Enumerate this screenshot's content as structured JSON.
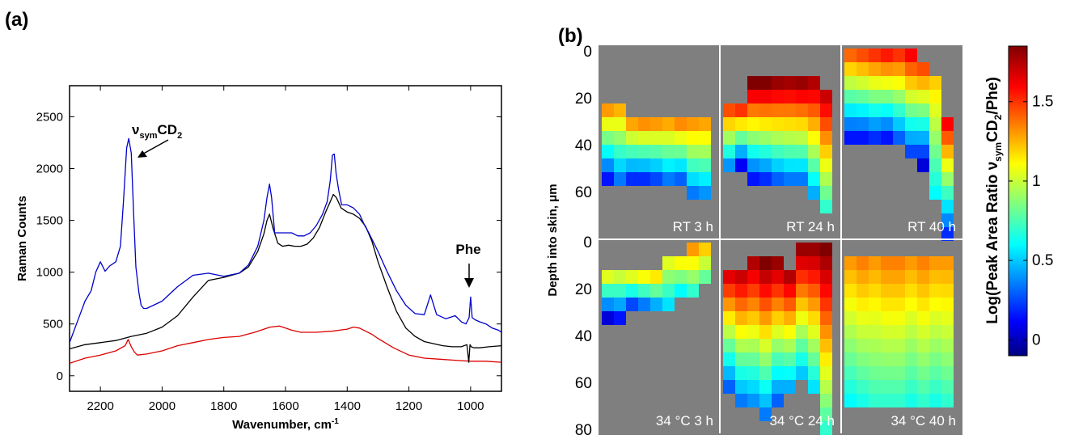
{
  "panel_a_label": "(a)",
  "panel_b_label": "(b)",
  "chart_data": [
    {
      "type": "line",
      "panel": "(a)",
      "xlabel": "Wavenumber, cm",
      "xlabel_sup": "-1",
      "ylabel": "Raman Counts",
      "xlim": [
        2300,
        900
      ],
      "ylim": [
        -150,
        2800
      ],
      "x_ticks": [
        2200,
        2000,
        1800,
        1600,
        1400,
        1200,
        1000
      ],
      "y_ticks": [
        0,
        500,
        1000,
        1500,
        2000,
        2500
      ],
      "annotations": {
        "cd2_base": "ν",
        "cd2_sub": "sym",
        "cd2_main": "CD",
        "cd2_sub2": "2",
        "phe": "Phe"
      },
      "series": [
        {
          "color": "#0000cc",
          "x": [
            2300,
            2280,
            2250,
            2230,
            2215,
            2200,
            2185,
            2170,
            2150,
            2135,
            2125,
            2115,
            2108,
            2100,
            2092,
            2085,
            2075,
            2068,
            2060,
            2050,
            2000,
            1950,
            1900,
            1850,
            1800,
            1750,
            1720,
            1690,
            1670,
            1660,
            1652,
            1645,
            1635,
            1620,
            1600,
            1580,
            1560,
            1540,
            1520,
            1500,
            1480,
            1465,
            1455,
            1448,
            1442,
            1436,
            1428,
            1418,
            1400,
            1380,
            1360,
            1345,
            1330,
            1300,
            1270,
            1240,
            1210,
            1180,
            1150,
            1130,
            1110,
            1080,
            1050,
            1030,
            1015,
            1005,
            1000,
            995,
            985,
            970,
            950,
            930,
            910,
            900
          ],
          "y": [
            320,
            480,
            720,
            820,
            1000,
            1100,
            1010,
            1060,
            1100,
            1250,
            1700,
            2200,
            2290,
            2150,
            1550,
            1050,
            800,
            680,
            650,
            650,
            720,
            860,
            970,
            990,
            960,
            990,
            1070,
            1250,
            1500,
            1720,
            1850,
            1720,
            1380,
            1380,
            1380,
            1380,
            1350,
            1350,
            1380,
            1450,
            1560,
            1680,
            1880,
            2130,
            2140,
            1950,
            1800,
            1650,
            1650,
            1620,
            1560,
            1460,
            1380,
            1200,
            1000,
            820,
            680,
            600,
            590,
            780,
            590,
            550,
            580,
            520,
            500,
            560,
            760,
            560,
            540,
            520,
            500,
            460,
            440,
            420
          ]
        },
        {
          "color": "#000000",
          "x": [
            2300,
            2250,
            2200,
            2150,
            2100,
            2050,
            2000,
            1950,
            1900,
            1850,
            1800,
            1750,
            1720,
            1690,
            1670,
            1660,
            1652,
            1640,
            1625,
            1610,
            1590,
            1570,
            1550,
            1530,
            1510,
            1490,
            1470,
            1455,
            1445,
            1435,
            1420,
            1400,
            1380,
            1360,
            1340,
            1320,
            1300,
            1270,
            1240,
            1210,
            1180,
            1150,
            1120,
            1090,
            1060,
            1030,
            1012,
            1006,
            1002,
            998,
            990,
            970,
            940,
            900
          ],
          "y": [
            260,
            300,
            320,
            340,
            380,
            410,
            470,
            580,
            760,
            920,
            950,
            990,
            1050,
            1200,
            1370,
            1500,
            1560,
            1420,
            1280,
            1250,
            1260,
            1250,
            1250,
            1270,
            1330,
            1430,
            1580,
            1680,
            1750,
            1720,
            1620,
            1580,
            1560,
            1520,
            1440,
            1300,
            1100,
            850,
            620,
            460,
            380,
            330,
            310,
            290,
            280,
            280,
            300,
            130,
            300,
            280,
            270,
            270,
            280,
            290
          ]
        },
        {
          "color": "#dd0000",
          "x": [
            2300,
            2250,
            2200,
            2150,
            2120,
            2110,
            2100,
            2090,
            2080,
            2050,
            2000,
            1950,
            1900,
            1850,
            1800,
            1750,
            1700,
            1650,
            1620,
            1600,
            1580,
            1550,
            1500,
            1450,
            1400,
            1380,
            1360,
            1340,
            1320,
            1300,
            1250,
            1200,
            1150,
            1100,
            1050,
            1000,
            950,
            900
          ],
          "y": [
            120,
            170,
            200,
            240,
            290,
            350,
            280,
            230,
            200,
            210,
            240,
            290,
            320,
            350,
            370,
            380,
            420,
            470,
            480,
            460,
            440,
            420,
            420,
            430,
            450,
            470,
            460,
            430,
            400,
            360,
            270,
            200,
            170,
            160,
            150,
            140,
            140,
            130
          ]
        }
      ]
    },
    {
      "type": "heatmap",
      "panel": "(b)",
      "ylabel": "Depth into skin, μm",
      "y_ticks_top": [
        "0",
        "20",
        "40",
        "60"
      ],
      "y_ticks_bottom": [
        "0",
        "20",
        "40",
        "60",
        "80"
      ],
      "colorbar": {
        "title_main": "Log(Peak Area Ratio ",
        "title_nu": "ν",
        "title_sub": "sym",
        "title_cd": "CD",
        "title_sub2": "2",
        "title_end": "/Phe)",
        "range": [
          -0.1,
          1.85
        ],
        "ticks": [
          "0",
          "0.5",
          "1",
          "1.5"
        ],
        "tick_values": [
          0,
          0.5,
          1,
          1.5
        ]
      },
      "cell_grid": {
        "cols": 9,
        "rows_top": 14,
        "rows_bottom": 14
      },
      "cells": [
        {
          "label": "RT 3 h",
          "v_top": [
            1.3,
            1.25,
            1.28,
            1.32,
            1.3,
            1.27,
            1.33,
            1.3,
            1.28
          ],
          "v_bottom": [
            0.15,
            0.35,
            0.2,
            0.2,
            0.25,
            0.35,
            0.3,
            0.35,
            0.4
          ],
          "start_row": [
            4,
            4,
            5,
            5,
            5,
            5,
            5,
            5,
            5
          ],
          "end_row": [
            10,
            10,
            10,
            10,
            10,
            10,
            10,
            11,
            11
          ]
        },
        {
          "label": "RT 24 h",
          "v_top": [
            1.45,
            1.5,
            1.85,
            1.85,
            1.8,
            1.78,
            1.8,
            1.75,
            1.7
          ],
          "v_bottom": [
            0.4,
            0.1,
            0.15,
            0.2,
            0.3,
            0.35,
            0.35,
            0.45,
            0.7
          ],
          "start_row": [
            4,
            4,
            2,
            2,
            2,
            2,
            2,
            2,
            3
          ],
          "end_row": [
            9,
            9,
            10,
            10,
            10,
            10,
            10,
            11,
            12
          ]
        },
        {
          "label": "RT 40 h",
          "v_top": [
            1.4,
            1.45,
            1.5,
            1.55,
            1.5,
            1.6,
            1.45,
            1.2,
            1.6
          ],
          "v_bottom": [
            0.15,
            0.15,
            0.2,
            0.15,
            0.3,
            0.25,
            0.05,
            0.6,
            0.2
          ],
          "start_row": [
            0,
            0,
            0,
            0,
            0,
            0,
            1,
            2,
            5
          ],
          "end_row": [
            7,
            7,
            7,
            7,
            7,
            8,
            9,
            11,
            14
          ]
        },
        {
          "label": "34 °C 3 h",
          "v_top": [
            1.05,
            1.0,
            1.05,
            1.1,
            1.15,
            1.05,
            1.1,
            1.3,
            1.2
          ],
          "v_bottom": [
            0.05,
            0.15,
            0.25,
            0.35,
            0.45,
            0.55,
            0.6,
            0.7,
            0.8
          ],
          "start_row": [
            2,
            2,
            2,
            2,
            2,
            1,
            1,
            0,
            0
          ],
          "end_row": [
            6,
            6,
            5,
            5,
            5,
            5,
            4,
            4,
            3
          ]
        },
        {
          "label": "34 °C 24 h",
          "v_top": [
            1.65,
            1.7,
            1.75,
            1.85,
            1.8,
            1.75,
            1.8,
            1.8,
            1.85
          ],
          "v_bottom": [
            0.3,
            0.35,
            0.4,
            0.35,
            0.3,
            0.45,
            0.5,
            0.55,
            0.7
          ],
          "start_row": [
            2,
            2,
            1,
            1,
            1,
            2,
            0,
            0,
            0
          ],
          "end_row": [
            11,
            12,
            12,
            13,
            12,
            11,
            10,
            11,
            14
          ]
        },
        {
          "label": "34 °C 40 h",
          "v_top": [
            1.3,
            1.35,
            1.3,
            1.35,
            1.35,
            1.3,
            1.35,
            1.3,
            1.3
          ],
          "v_bottom": [
            0.6,
            0.65,
            0.7,
            0.7,
            0.7,
            0.65,
            0.7,
            0.65,
            0.7
          ],
          "start_row": [
            1,
            1,
            1,
            1,
            1,
            1,
            1,
            1,
            1
          ],
          "end_row": [
            12,
            12,
            12,
            12,
            12,
            12,
            12,
            12,
            12
          ]
        }
      ]
    }
  ]
}
